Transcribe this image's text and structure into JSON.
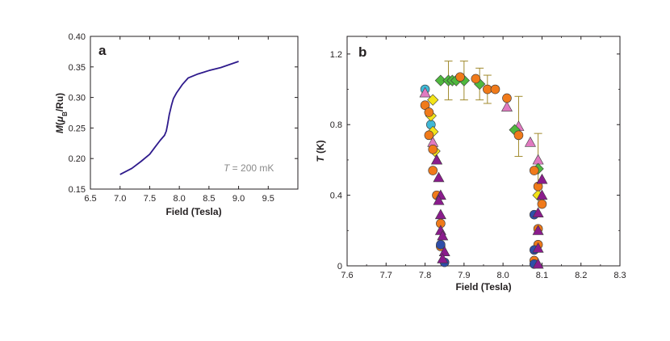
{
  "chart_data": [
    {
      "panel": "a",
      "type": "line",
      "xlabel": "Field (Tesla)",
      "ylabel": "M(μB/Ru)",
      "xlim": [
        6.5,
        10.0
      ],
      "ylim": [
        0.15,
        0.4
      ],
      "xticks": [
        "6.5",
        "7.0",
        "7.5",
        "8.0",
        "8.5",
        "9.0",
        "9.5"
      ],
      "yticks": [
        "0.15",
        "0.20",
        "0.25",
        "0.30",
        "0.35",
        "0.40"
      ],
      "annotation": "T = 200 mK",
      "annotation_var": "T",
      "annotation_rest": " = 200 mK",
      "line_color": "#2e1a8c",
      "series": [
        {
          "x": [
            7.0,
            7.2,
            7.35,
            7.5,
            7.6,
            7.68,
            7.75,
            7.78,
            7.8,
            7.83,
            7.87,
            7.9,
            7.95,
            8.05,
            8.15,
            8.3,
            8.5,
            8.7,
            9.0
          ],
          "y": [
            0.174,
            0.184,
            0.195,
            0.207,
            0.22,
            0.23,
            0.238,
            0.245,
            0.255,
            0.272,
            0.288,
            0.298,
            0.307,
            0.321,
            0.332,
            0.338,
            0.344,
            0.349,
            0.359
          ]
        }
      ]
    },
    {
      "panel": "b",
      "type": "scatter",
      "xlabel": "Field (Tesla)",
      "ylabel": "T (K)",
      "xlim": [
        7.6,
        8.3
      ],
      "ylim": [
        0.0,
        1.3
      ],
      "xticks": [
        "7.6",
        "7.7",
        "7.8",
        "7.9",
        "8.0",
        "8.1",
        "8.2",
        "8.3"
      ],
      "yticks": [
        "0",
        "0.4",
        "0.8",
        "1.2"
      ],
      "errorbar_color": "#a08a2c",
      "series": [
        {
          "marker": "circle",
          "color": "#3fb8d6",
          "points": [
            [
              7.8,
              1.0
            ],
            [
              7.815,
              0.8
            ]
          ]
        },
        {
          "marker": "diamond",
          "color": "#f2e318",
          "points": [
            [
              7.82,
              0.94
            ],
            [
              7.815,
              0.85
            ],
            [
              7.82,
              0.76
            ],
            [
              7.825,
              0.65
            ],
            [
              8.09,
              0.4
            ]
          ]
        },
        {
          "marker": "triangle",
          "color": "#e07ac0",
          "points": [
            [
              7.8,
              0.98
            ],
            [
              7.82,
              0.7
            ],
            [
              7.83,
              0.6
            ],
            [
              8.01,
              0.9
            ],
            [
              8.04,
              0.79
            ],
            [
              8.07,
              0.7
            ],
            [
              8.09,
              0.6
            ]
          ]
        },
        {
          "marker": "diamond",
          "color": "#4fb83e",
          "points": [
            [
              7.84,
              1.05
            ],
            [
              7.86,
              1.05
            ],
            [
              7.87,
              1.05
            ],
            [
              7.88,
              1.05
            ],
            [
              7.9,
              1.05
            ],
            [
              7.94,
              1.03
            ],
            [
              8.03,
              0.77
            ],
            [
              8.09,
              0.55
            ]
          ]
        },
        {
          "marker": "circle",
          "color": "#f07a1a",
          "points": [
            [
              7.8,
              0.91
            ],
            [
              7.81,
              0.87
            ],
            [
              7.81,
              0.74
            ],
            [
              7.82,
              0.66
            ],
            [
              7.82,
              0.54
            ],
            [
              7.83,
              0.4
            ],
            [
              7.84,
              0.24
            ],
            [
              7.84,
              0.11
            ],
            [
              7.89,
              1.07
            ],
            [
              7.93,
              1.06
            ],
            [
              7.96,
              1.0
            ],
            [
              7.98,
              1.0
            ],
            [
              8.01,
              0.95
            ],
            [
              8.04,
              0.74
            ],
            [
              8.08,
              0.54
            ],
            [
              8.09,
              0.45
            ],
            [
              8.1,
              0.35
            ],
            [
              8.09,
              0.21
            ],
            [
              8.09,
              0.12
            ],
            [
              8.08,
              0.03
            ]
          ]
        },
        {
          "marker": "circle",
          "color": "#2f4ea8",
          "points": [
            [
              7.84,
              0.12
            ],
            [
              7.85,
              0.02
            ],
            [
              8.08,
              0.29
            ],
            [
              8.08,
              0.09
            ],
            [
              8.08,
              0.01
            ]
          ]
        },
        {
          "marker": "triangle",
          "color": "#8a1c8c",
          "points": [
            [
              7.83,
              0.6
            ],
            [
              7.835,
              0.5
            ],
            [
              7.84,
              0.4
            ],
            [
              7.835,
              0.37
            ],
            [
              7.84,
              0.29
            ],
            [
              7.84,
              0.2
            ],
            [
              7.845,
              0.17
            ],
            [
              7.85,
              0.08
            ],
            [
              7.845,
              0.04
            ],
            [
              8.1,
              0.49
            ],
            [
              8.1,
              0.4
            ],
            [
              8.09,
              0.3
            ],
            [
              8.09,
              0.2
            ],
            [
              8.09,
              0.1
            ],
            [
              8.09,
              0.01
            ]
          ]
        }
      ],
      "errorbars": [
        {
          "x": 7.86,
          "y": 1.05,
          "err": 0.11
        },
        {
          "x": 7.9,
          "y": 1.05,
          "err": 0.11
        },
        {
          "x": 7.94,
          "y": 1.03,
          "err": 0.09
        },
        {
          "x": 7.96,
          "y": 1.0,
          "err": 0.08
        },
        {
          "x": 8.04,
          "y": 0.79,
          "err": 0.17
        },
        {
          "x": 8.09,
          "y": 0.6,
          "err": 0.15
        }
      ]
    }
  ]
}
